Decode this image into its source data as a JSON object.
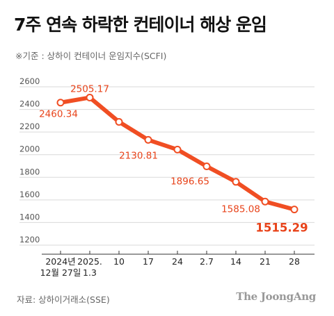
{
  "title": "7주 연속 하락한 컨테이너 해상 운임",
  "subtitle": "※기준 : 상하이 컨테이너 운임지수(SCFI)",
  "source": "자료: 상하이거래소(SSE)",
  "brand": "The JoongAng",
  "colors": {
    "line": "#f04e23",
    "label": "#e8431a",
    "axis_text": "#555555",
    "grid": "#d9d9d9"
  },
  "chart_data": {
    "type": "line",
    "title": "7주 연속 하락한 컨테이너 해상 운임",
    "subtitle": "※기준 : 상하이 컨테이너 운임지수(SCFI)",
    "ylim": [
      1200,
      2600
    ],
    "yticks": [
      2600,
      2400,
      2200,
      2000,
      1800,
      1600,
      1400,
      1200
    ],
    "grid": true,
    "categories": [
      [
        "2024년",
        "12월 27일"
      ],
      [
        "2025.",
        "1.3"
      ],
      [
        "10"
      ],
      [
        "17"
      ],
      [
        "24"
      ],
      [
        "2.7"
      ],
      [
        "14"
      ],
      [
        "21"
      ],
      [
        "28"
      ]
    ],
    "values": [
      2460.34,
      2505.17,
      2290,
      2130.81,
      2045,
      1896.65,
      1760,
      1585.08,
      1515.29
    ],
    "labels": [
      "2460.34",
      "2505.17",
      "",
      "2130.81",
      "",
      "1896.65",
      "",
      "1585.08",
      "1515.29"
    ]
  }
}
